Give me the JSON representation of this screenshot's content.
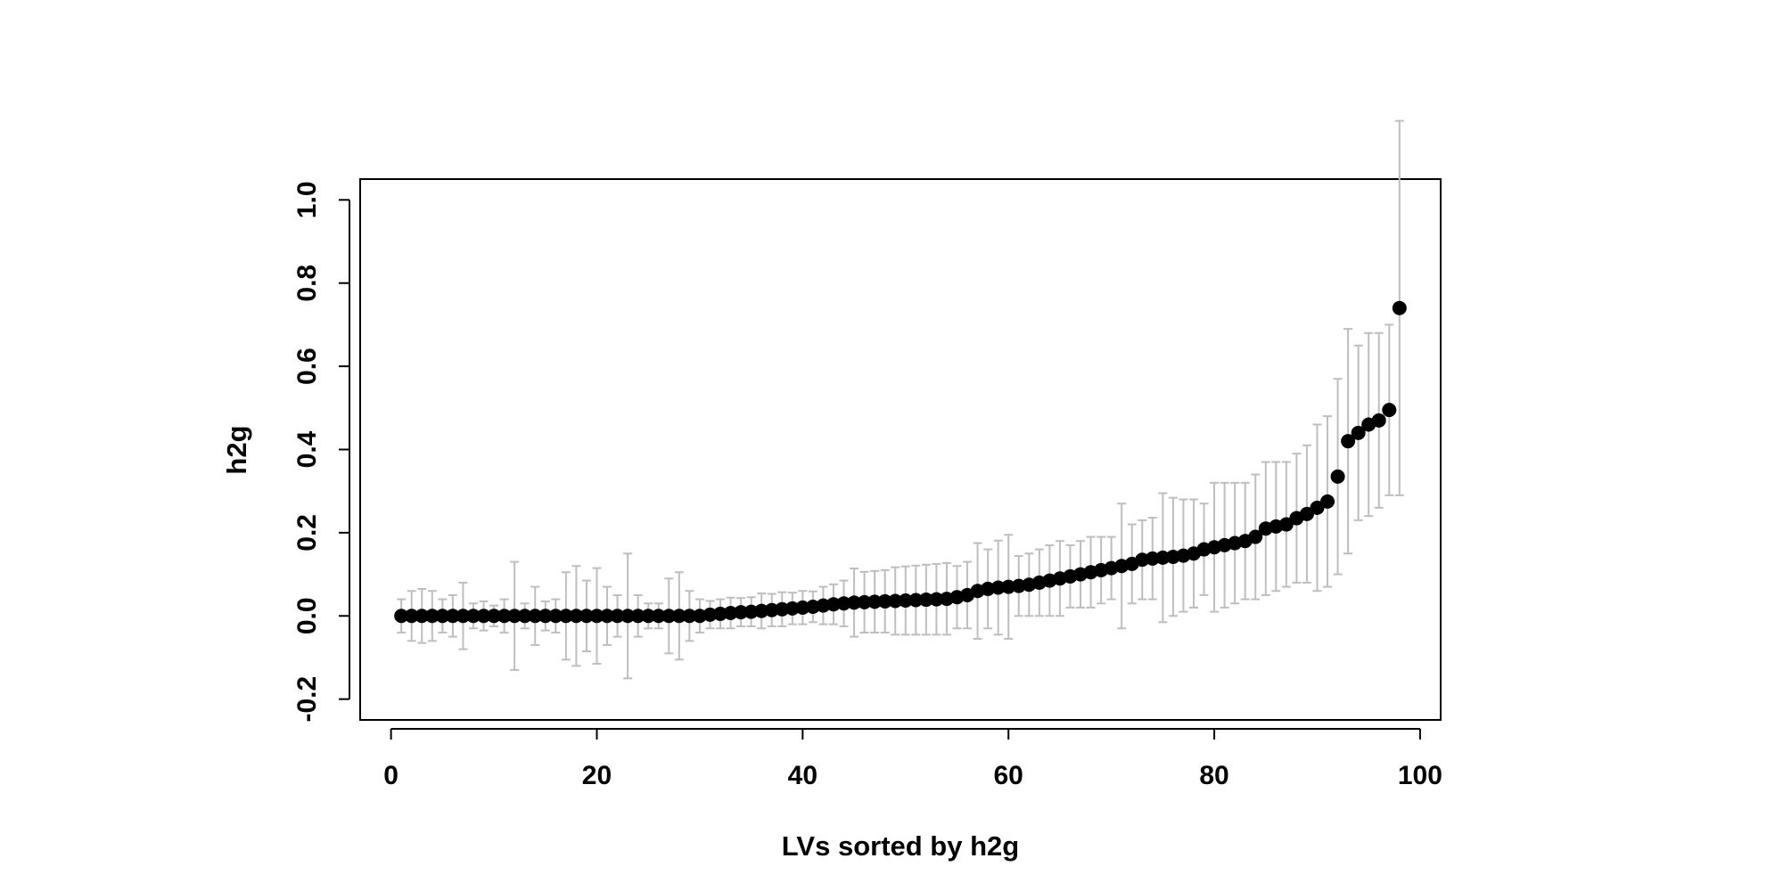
{
  "chart_data": {
    "type": "scatter",
    "title": "",
    "xlabel": "LVs sorted by h2g",
    "ylabel": "h2g",
    "xlim": [
      -3,
      102
    ],
    "ylim": [
      -0.25,
      1.05
    ],
    "x_ticks": [
      0,
      20,
      40,
      60,
      80,
      100
    ],
    "x_tick_labels": [
      "0",
      "20",
      "40",
      "60",
      "80",
      "100"
    ],
    "y_ticks": [
      -0.2,
      0.0,
      0.2,
      0.4,
      0.6,
      0.8,
      1.0
    ],
    "y_tick_labels": [
      "-0.2",
      "0.0",
      "0.2",
      "0.4",
      "0.6",
      "0.8",
      "1.0"
    ],
    "grid": false,
    "point_color": "#000000",
    "errorbar_color": "#bebebe",
    "x": [
      1,
      2,
      3,
      4,
      5,
      6,
      7,
      8,
      9,
      10,
      11,
      12,
      13,
      14,
      15,
      16,
      17,
      18,
      19,
      20,
      21,
      22,
      23,
      24,
      25,
      26,
      27,
      28,
      29,
      30,
      31,
      32,
      33,
      34,
      35,
      36,
      37,
      38,
      39,
      40,
      41,
      42,
      43,
      44,
      45,
      46,
      47,
      48,
      49,
      50,
      51,
      52,
      53,
      54,
      55,
      56,
      57,
      58,
      59,
      60,
      61,
      62,
      63,
      64,
      65,
      66,
      67,
      68,
      69,
      70,
      71,
      72,
      73,
      74,
      75,
      76,
      77,
      78,
      79,
      80,
      81,
      82,
      83,
      84,
      85,
      86,
      87,
      88,
      89,
      90,
      91,
      92,
      93,
      94,
      95,
      96,
      97,
      98
    ],
    "y": [
      0.0,
      0.0,
      0.0,
      0.0,
      0.0,
      0.0,
      0.0,
      0.0,
      0.0,
      0.0,
      0.0,
      0.0,
      0.0,
      0.0,
      0.0,
      0.0,
      0.0,
      0.0,
      0.0,
      0.0,
      0.0,
      0.0,
      0.0,
      0.0,
      0.0,
      0.0,
      0.0,
      0.0,
      0.0,
      0.0,
      0.003,
      0.005,
      0.007,
      0.009,
      0.01,
      0.012,
      0.014,
      0.016,
      0.018,
      0.02,
      0.022,
      0.025,
      0.028,
      0.03,
      0.032,
      0.033,
      0.034,
      0.035,
      0.036,
      0.037,
      0.038,
      0.039,
      0.04,
      0.041,
      0.045,
      0.05,
      0.06,
      0.065,
      0.068,
      0.07,
      0.072,
      0.075,
      0.08,
      0.085,
      0.09,
      0.095,
      0.1,
      0.105,
      0.11,
      0.115,
      0.12,
      0.125,
      0.135,
      0.138,
      0.14,
      0.142,
      0.145,
      0.15,
      0.16,
      0.165,
      0.17,
      0.175,
      0.18,
      0.19,
      0.21,
      0.215,
      0.22,
      0.235,
      0.245,
      0.26,
      0.275,
      0.335,
      0.42,
      0.44,
      0.46,
      0.47,
      0.495,
      0.74
    ],
    "y_lower": [
      -0.04,
      -0.06,
      -0.065,
      -0.06,
      -0.04,
      -0.05,
      -0.08,
      -0.03,
      -0.035,
      -0.025,
      -0.04,
      -0.13,
      -0.03,
      -0.07,
      -0.035,
      -0.04,
      -0.105,
      -0.12,
      -0.085,
      -0.115,
      -0.07,
      -0.05,
      -0.15,
      -0.05,
      -0.03,
      -0.03,
      -0.09,
      -0.105,
      -0.06,
      -0.04,
      -0.03,
      -0.03,
      -0.03,
      -0.025,
      -0.025,
      -0.03,
      -0.025,
      -0.025,
      -0.02,
      -0.02,
      -0.015,
      -0.02,
      -0.02,
      -0.025,
      -0.05,
      -0.04,
      -0.04,
      -0.04,
      -0.045,
      -0.045,
      -0.045,
      -0.045,
      -0.045,
      -0.045,
      -0.03,
      -0.03,
      -0.055,
      -0.03,
      -0.045,
      -0.055,
      0.0,
      0.0,
      0.0,
      0.0,
      0.0,
      0.02,
      0.02,
      0.02,
      0.03,
      0.04,
      -0.03,
      0.03,
      0.04,
      0.04,
      -0.015,
      0.0,
      0.01,
      0.02,
      0.05,
      0.01,
      0.02,
      0.03,
      0.04,
      0.04,
      0.05,
      0.06,
      0.07,
      0.08,
      0.08,
      0.06,
      0.07,
      0.1,
      0.15,
      0.23,
      0.24,
      0.26,
      0.29,
      0.29
    ],
    "y_upper": [
      0.04,
      0.06,
      0.065,
      0.06,
      0.04,
      0.05,
      0.08,
      0.03,
      0.035,
      0.025,
      0.04,
      0.13,
      0.03,
      0.07,
      0.035,
      0.04,
      0.105,
      0.12,
      0.085,
      0.115,
      0.07,
      0.05,
      0.15,
      0.05,
      0.03,
      0.03,
      0.09,
      0.105,
      0.06,
      0.04,
      0.036,
      0.04,
      0.044,
      0.043,
      0.045,
      0.054,
      0.053,
      0.057,
      0.056,
      0.06,
      0.059,
      0.07,
      0.076,
      0.085,
      0.114,
      0.106,
      0.108,
      0.11,
      0.117,
      0.119,
      0.121,
      0.123,
      0.125,
      0.127,
      0.12,
      0.13,
      0.175,
      0.16,
      0.181,
      0.195,
      0.144,
      0.15,
      0.16,
      0.17,
      0.18,
      0.17,
      0.18,
      0.19,
      0.19,
      0.19,
      0.27,
      0.22,
      0.23,
      0.236,
      0.295,
      0.284,
      0.28,
      0.28,
      0.27,
      0.32,
      0.32,
      0.32,
      0.32,
      0.34,
      0.37,
      0.37,
      0.37,
      0.39,
      0.41,
      0.46,
      0.48,
      0.57,
      0.69,
      0.65,
      0.68,
      0.68,
      0.7,
      1.19
    ]
  }
}
